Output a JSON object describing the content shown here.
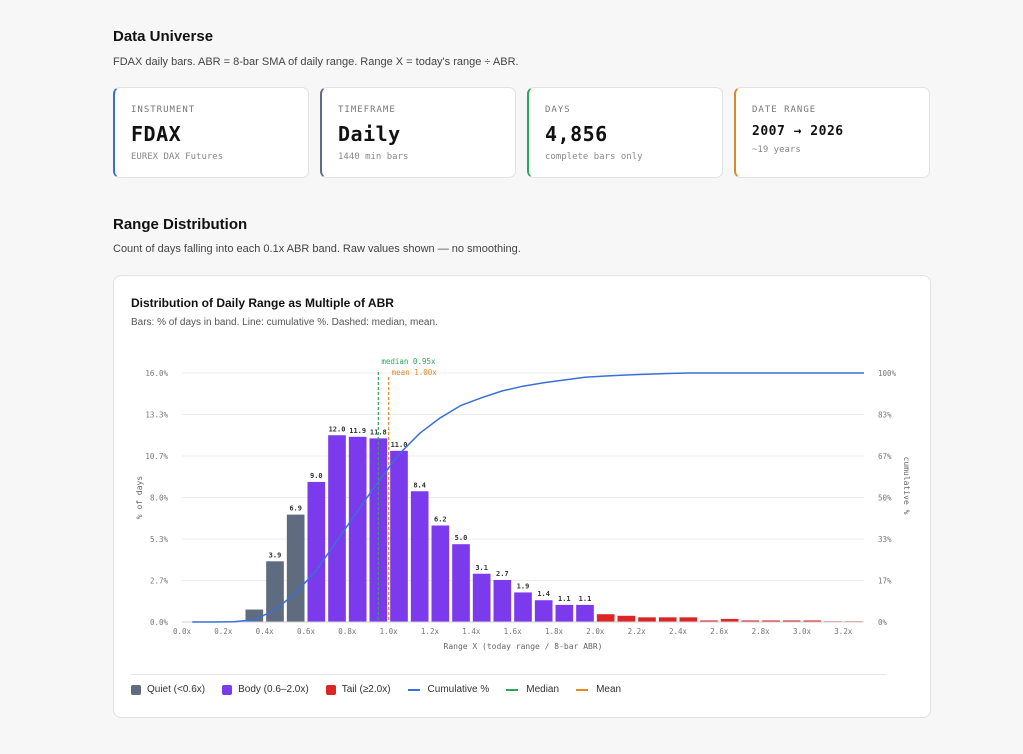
{
  "universe": {
    "title": "Data Universe",
    "description": "FDAX daily bars. ABR = 8-bar SMA of daily range. Range X = today's range ÷ ABR."
  },
  "cards": [
    {
      "label": "INSTRUMENT",
      "value": "FDAX",
      "sub": "EUREX DAX Futures",
      "accent": "#3b6fd8"
    },
    {
      "label": "TIMEFRAME",
      "value": "Daily",
      "sub": "1440 min bars",
      "accent": "#5f6b8a"
    },
    {
      "label": "DAYS",
      "value": "4,856",
      "sub": "complete bars only",
      "accent": "#2fa45a"
    },
    {
      "label": "DATE RANGE",
      "value": "2007 → 2026",
      "sub": "~19 years",
      "accent": "#d9882b"
    }
  ],
  "range": {
    "title": "Range Distribution",
    "description": "Count of days falling into each 0.1x ABR band. Raw values shown — no smoothing."
  },
  "chart_data": {
    "type": "bar",
    "title": "Distribution of Daily Range as Multiple of ABR",
    "subtitle": "Bars: % of days in band. Line: cumulative %. Dashed: median, mean.",
    "xlabel": "Range X (today range / 8-bar ABR)",
    "ylabel": "% of days",
    "y2label": "cumulative %",
    "xlim": [
      0.0,
      3.3
    ],
    "ylim": [
      0,
      16.0
    ],
    "y2lim": [
      0,
      100
    ],
    "x_ticks": [
      "0.0x",
      "0.2x",
      "0.4x",
      "0.6x",
      "0.8x",
      "1.0x",
      "1.2x",
      "1.4x",
      "1.6x",
      "1.8x",
      "2.0x",
      "2.2x",
      "2.4x",
      "2.6x",
      "2.8x",
      "3.0x",
      "3.2x"
    ],
    "y_ticks": [
      "0.0%",
      "2.7%",
      "5.3%",
      "8.0%",
      "10.7%",
      "13.3%",
      "16.0%"
    ],
    "y2_ticks": [
      "0%",
      "17%",
      "33%",
      "50%",
      "67%",
      "83%",
      "100%"
    ],
    "bins": [
      0.0,
      0.1,
      0.2,
      0.3,
      0.4,
      0.5,
      0.6,
      0.7,
      0.8,
      0.9,
      1.0,
      1.1,
      1.2,
      1.3,
      1.4,
      1.5,
      1.6,
      1.7,
      1.8,
      1.9,
      2.0,
      2.1,
      2.2,
      2.3,
      2.4,
      2.5,
      2.6,
      2.7,
      2.8,
      2.9,
      3.0,
      3.1,
      3.2
    ],
    "values": [
      0,
      0,
      0.05,
      0.8,
      3.9,
      6.9,
      9.0,
      12.0,
      11.9,
      11.8,
      11.0,
      8.4,
      6.2,
      5.0,
      3.1,
      2.7,
      1.9,
      1.4,
      1.1,
      1.1,
      0.5,
      0.4,
      0.3,
      0.3,
      0.3,
      0.1,
      0.2,
      0.1,
      0.1,
      0.1,
      0.1,
      0.05,
      0.05
    ],
    "labels": [
      "",
      "",
      "",
      "",
      "3.9",
      "6.9",
      "9.0",
      "12.0",
      "11.9",
      "11.8",
      "11.0",
      "8.4",
      "6.2",
      "5.0",
      "3.1",
      "2.7",
      "1.9",
      "1.4",
      "1.1",
      "1.1",
      "",
      "",
      "",
      "",
      "",
      "",
      "",
      "",
      "",
      "",
      "",
      "",
      ""
    ],
    "groups": [
      "quiet",
      "quiet",
      "quiet",
      "quiet",
      "quiet",
      "quiet",
      "body",
      "body",
      "body",
      "body",
      "body",
      "body",
      "body",
      "body",
      "body",
      "body",
      "body",
      "body",
      "body",
      "body",
      "tail",
      "tail",
      "tail",
      "tail",
      "tail",
      "tail",
      "tail",
      "tail",
      "tail",
      "tail",
      "tail",
      "tail",
      "tail"
    ],
    "cumulative": [
      0,
      0,
      0.1,
      0.9,
      4.8,
      11.7,
      20.7,
      32.7,
      44.6,
      56.4,
      67.4,
      75.8,
      82.0,
      87.0,
      90.1,
      92.8,
      94.7,
      96.1,
      97.2,
      98.3,
      98.8,
      99.2,
      99.5,
      99.8,
      100,
      100,
      100,
      100,
      100,
      100,
      100,
      100,
      100
    ],
    "median": {
      "x": 0.95,
      "label": "median 0.95x"
    },
    "mean": {
      "x": 1.0,
      "label": "mean 1.00x"
    },
    "colors": {
      "quiet": "#5f6b7e",
      "body": "#7c3aed",
      "tail": "#dc2626",
      "cumulative": "#3b6fd8",
      "median": "#2fa45a",
      "mean": "#e08a2a"
    },
    "legend": [
      {
        "key": "quiet",
        "kind": "box",
        "label": "Quiet (<0.6x)"
      },
      {
        "key": "body",
        "kind": "box",
        "label": "Body (0.6–2.0x)"
      },
      {
        "key": "tail",
        "kind": "box",
        "label": "Tail (≥2.0x)"
      },
      {
        "key": "cumulative",
        "kind": "line",
        "label": "Cumulative %"
      },
      {
        "key": "median",
        "kind": "line",
        "label": "Median"
      },
      {
        "key": "mean",
        "kind": "line",
        "label": "Mean"
      }
    ]
  }
}
